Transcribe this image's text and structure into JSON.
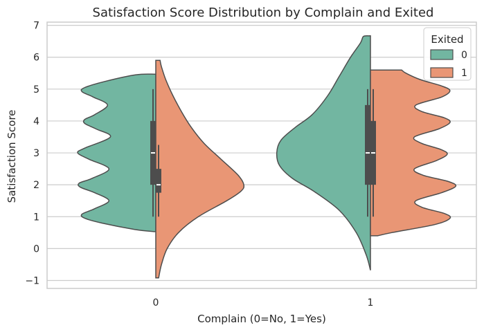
{
  "chart_data": {
    "type": "violin",
    "title": "Satisfaction Score Distribution by Complain and Exited",
    "xlabel": "Complain (0=No, 1=Yes)",
    "ylabel": "Satisfaction Score",
    "categories": [
      "0",
      "1"
    ],
    "ylim": [
      -1.25,
      7.1
    ],
    "yticks": [
      "−1",
      "0",
      "1",
      "2",
      "3",
      "4",
      "5",
      "6",
      "7"
    ],
    "ytick_values": [
      -1,
      0,
      1,
      2,
      3,
      4,
      5,
      6,
      7
    ],
    "grid": true,
    "legend": {
      "title": "Exited",
      "placement": "top-right",
      "entries": [
        {
          "label": "0",
          "color": "#72b6a1"
        },
        {
          "label": "1",
          "color": "#e99675"
        }
      ]
    },
    "series": [
      {
        "legend_label": "0",
        "side": "left",
        "color": "#72b6a1",
        "groups": [
          {
            "category": "0",
            "ymin": 0.53,
            "ymax": 5.47,
            "profile": [
              [
                0.53,
                0.01
              ],
              [
                0.6,
                0.15
              ],
              [
                0.8,
                0.38
              ],
              [
                0.95,
                0.5
              ],
              [
                1.08,
                0.52
              ],
              [
                1.25,
                0.43
              ],
              [
                1.5,
                0.33
              ],
              [
                1.75,
                0.43
              ],
              [
                1.92,
                0.53
              ],
              [
                2.05,
                0.54
              ],
              [
                2.2,
                0.45
              ],
              [
                2.5,
                0.33
              ],
              [
                2.8,
                0.47
              ],
              [
                3.0,
                0.55
              ],
              [
                3.15,
                0.5
              ],
              [
                3.5,
                0.32
              ],
              [
                3.75,
                0.42
              ],
              [
                3.92,
                0.5
              ],
              [
                4.05,
                0.5
              ],
              [
                4.2,
                0.43
              ],
              [
                4.5,
                0.34
              ],
              [
                4.75,
                0.44
              ],
              [
                4.92,
                0.52
              ],
              [
                5.05,
                0.5
              ],
              [
                5.25,
                0.35
              ],
              [
                5.45,
                0.14
              ],
              [
                5.47,
                0.01
              ]
            ],
            "box": {
              "q1": 2.0,
              "median": 3.0,
              "q3": 4.0,
              "whisker_low": 1.0,
              "whisker_high": 5.0
            }
          },
          {
            "category": "1",
            "ymin": -0.68,
            "ymax": 6.67,
            "profile": [
              [
                -0.68,
                0.0
              ],
              [
                -0.2,
                0.03
              ],
              [
                0.5,
                0.1
              ],
              [
                1.2,
                0.22
              ],
              [
                1.8,
                0.4
              ],
              [
                2.2,
                0.55
              ],
              [
                2.6,
                0.64
              ],
              [
                3.0,
                0.66
              ],
              [
                3.4,
                0.63
              ],
              [
                3.8,
                0.53
              ],
              [
                4.2,
                0.41
              ],
              [
                4.8,
                0.3
              ],
              [
                5.4,
                0.22
              ],
              [
                6.0,
                0.14
              ],
              [
                6.45,
                0.07
              ],
              [
                6.65,
                0.05
              ],
              [
                6.67,
                0.01
              ]
            ],
            "box": {
              "q1": 2.0,
              "median": 3.0,
              "q3": 4.5,
              "whisker_low": 1.0,
              "whisker_high": 5.0
            }
          }
        ]
      },
      {
        "legend_label": "1",
        "side": "right",
        "color": "#e99675",
        "groups": [
          {
            "category": "0",
            "ymin": -0.92,
            "ymax": 5.9,
            "profile": [
              [
                -0.92,
                0.02
              ],
              [
                -0.5,
                0.04
              ],
              [
                0.0,
                0.08
              ],
              [
                0.5,
                0.16
              ],
              [
                1.0,
                0.3
              ],
              [
                1.5,
                0.5
              ],
              [
                1.8,
                0.6
              ],
              [
                2.0,
                0.62
              ],
              [
                2.3,
                0.58
              ],
              [
                2.8,
                0.46
              ],
              [
                3.3,
                0.34
              ],
              [
                3.8,
                0.25
              ],
              [
                4.3,
                0.18
              ],
              [
                4.8,
                0.12
              ],
              [
                5.3,
                0.07
              ],
              [
                5.7,
                0.04
              ],
              [
                5.9,
                0.03
              ]
            ],
            "box": {
              "q1": 1.75,
              "median": 2.0,
              "q3": 2.5,
              "whisker_low": 1.0,
              "whisker_high": 3.25
            }
          },
          {
            "category": "1",
            "ymin": 0.4,
            "ymax": 5.6,
            "profile": [
              [
                0.4,
                0.05
              ],
              [
                0.5,
                0.15
              ],
              [
                0.75,
                0.45
              ],
              [
                0.95,
                0.56
              ],
              [
                1.1,
                0.52
              ],
              [
                1.3,
                0.36
              ],
              [
                1.5,
                0.32
              ],
              [
                1.75,
                0.5
              ],
              [
                1.95,
                0.6
              ],
              [
                2.1,
                0.55
              ],
              [
                2.3,
                0.37
              ],
              [
                2.5,
                0.31
              ],
              [
                2.75,
                0.46
              ],
              [
                2.95,
                0.54
              ],
              [
                3.1,
                0.5
              ],
              [
                3.3,
                0.36
              ],
              [
                3.5,
                0.31
              ],
              [
                3.75,
                0.48
              ],
              [
                3.95,
                0.56
              ],
              [
                4.1,
                0.52
              ],
              [
                4.3,
                0.36
              ],
              [
                4.5,
                0.32
              ],
              [
                4.75,
                0.5
              ],
              [
                4.95,
                0.56
              ],
              [
                5.1,
                0.5
              ],
              [
                5.3,
                0.35
              ],
              [
                5.5,
                0.25
              ],
              [
                5.6,
                0.22
              ]
            ],
            "box": {
              "q1": 2.0,
              "median": 3.0,
              "q3": 4.0,
              "whisker_low": 1.0,
              "whisker_high": 5.0
            }
          }
        ]
      }
    ]
  }
}
